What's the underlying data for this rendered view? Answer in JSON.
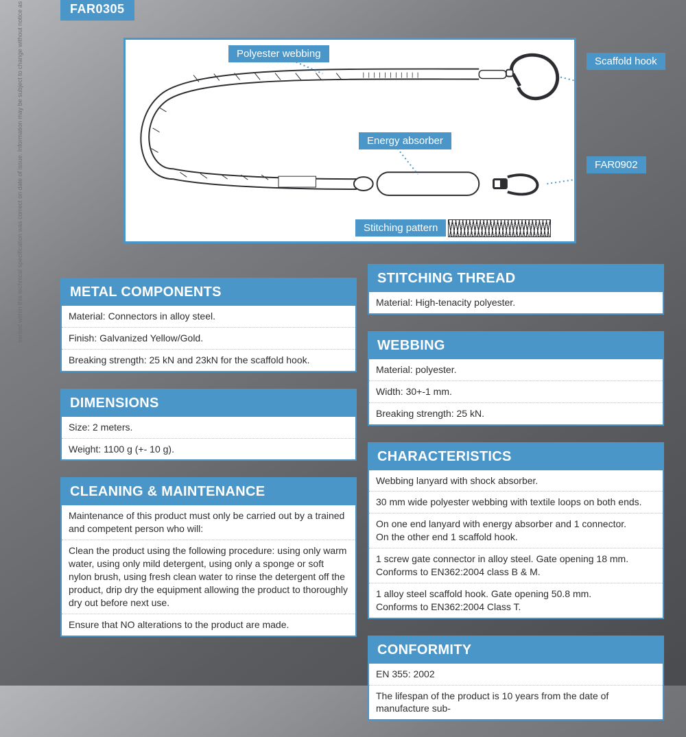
{
  "accent": "#4a96c9",
  "sku": "FAR0305",
  "sidetext": "sented within this technical specification was correct on date of issue. Information may be subject to change without notice as part of ongoing product improvement and development.  To confirm any specific piece of   lease email technical@jspsafety.com.",
  "diagram": {
    "callouts": {
      "webbing": "Polyester webbing",
      "absorber": "Energy absorber",
      "stitching": "Stitching pattern",
      "scaffold": "Scaffold hook",
      "connector": "FAR0902"
    }
  },
  "left_sections": [
    {
      "title": "METAL COMPONENTS",
      "rows": [
        "Material: Connectors in alloy steel.",
        "Finish: Galvanized Yellow/Gold.",
        "Breaking strength: 25 kN and 23kN for the scaffold hook."
      ]
    },
    {
      "title": "DIMENSIONS",
      "rows": [
        "Size: 2 meters.",
        "Weight: 1100 g (+- 10 g)."
      ]
    },
    {
      "title": "CLEANING & MAINTENANCE",
      "rows": [
        "Maintenance of this product must only be carried out by a trained and competent person who will:",
        "Clean the product using the following procedure: using only warm water, using only mild detergent, using only a sponge or soft nylon brush, using fresh clean water to rinse the detergent off the product, drip dry the equipment allowing the product to thoroughly dry out before next use.",
        "Ensure that NO alterations to the product are made."
      ]
    }
  ],
  "right_sections": [
    {
      "title": "STITCHING THREAD",
      "rows": [
        "Material: High-tenacity polyester."
      ]
    },
    {
      "title": "WEBBING",
      "rows": [
        "Material: polyester.",
        "Width: 30+-1 mm.",
        "Breaking strength: 25 kN."
      ]
    },
    {
      "title": "CHARACTERISTICS",
      "rows": [
        "Webbing lanyard with shock absorber.",
        "30 mm wide polyester webbing with textile loops on both ends.",
        "On one end lanyard with energy absorber and 1 connector.\nOn the other end 1 scaffold hook.",
        "1 screw gate connector in alloy steel. Gate opening 18 mm.\nConforms to EN362:2004 class B & M.",
        "1 alloy steel scaffold hook. Gate opening 50.8 mm.\nConforms to EN362:2004 Class T."
      ]
    },
    {
      "title": "CONFORMITY",
      "rows": [
        "EN 355: 2002",
        "The lifespan of the product is 10 years from the date of manufacture sub-"
      ]
    }
  ]
}
